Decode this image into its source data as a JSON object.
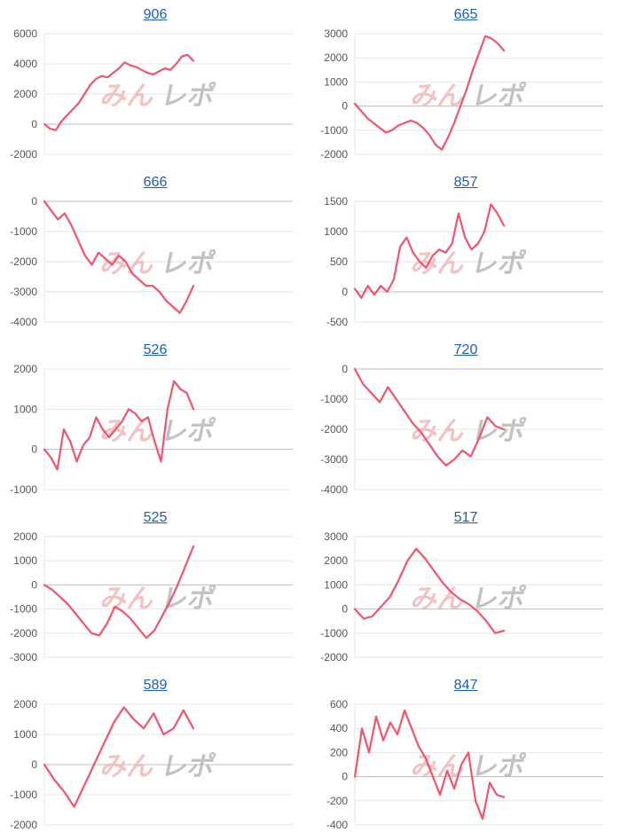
{
  "watermark": "みんレポ",
  "colors": {
    "line": "#f0546e",
    "grid": "#e6e6e6",
    "axis": "#bdbdbd",
    "watermark": "#f0b9b9",
    "watermark2": "#b8b8b8",
    "title": "#1a5fb4"
  },
  "chart_data": [
    {
      "type": "line",
      "title": "906",
      "ylim": [
        -2000,
        6000
      ],
      "yticks": [
        -2000,
        0,
        2000,
        4000,
        6000
      ],
      "series": [
        {
          "values": [
            0,
            -300,
            -400,
            200,
            600,
            1000,
            1400,
            2000,
            2600,
            3000,
            3200,
            3100,
            3400,
            3700,
            4100,
            3900,
            3800,
            3600,
            3400,
            3300,
            3500,
            3700,
            3600,
            4000,
            4500,
            4600,
            4200
          ]
        }
      ]
    },
    {
      "type": "line",
      "title": "665",
      "ylim": [
        -2000,
        3000
      ],
      "yticks": [
        -2000,
        -1000,
        0,
        1000,
        2000,
        3000
      ],
      "series": [
        {
          "values": [
            100,
            -200,
            -500,
            -700,
            -900,
            -1100,
            -1000,
            -800,
            -700,
            -600,
            -700,
            -900,
            -1200,
            -1600,
            -1800,
            -1300,
            -700,
            0,
            700,
            1500,
            2200,
            2900,
            2800,
            2600,
            2300
          ]
        }
      ]
    },
    {
      "type": "line",
      "title": "666",
      "ylim": [
        -4000,
        0
      ],
      "yticks": [
        -4000,
        -3000,
        -2000,
        -1000,
        0
      ],
      "series": [
        {
          "values": [
            0,
            -300,
            -600,
            -400,
            -800,
            -1300,
            -1800,
            -2100,
            -1700,
            -1900,
            -2100,
            -1800,
            -2000,
            -2400,
            -2600,
            -2800,
            -2800,
            -3000,
            -3300,
            -3500,
            -3700,
            -3300,
            -2800
          ]
        }
      ]
    },
    {
      "type": "line",
      "title": "857",
      "ylim": [
        -500,
        1500
      ],
      "yticks": [
        -500,
        0,
        500,
        1000,
        1500
      ],
      "series": [
        {
          "values": [
            50,
            -100,
            100,
            -50,
            100,
            0,
            200,
            750,
            900,
            650,
            500,
            400,
            600,
            700,
            650,
            800,
            1300,
            900,
            700,
            800,
            1000,
            1450,
            1300,
            1100
          ]
        }
      ]
    },
    {
      "type": "line",
      "title": "526",
      "ylim": [
        -1000,
        2000
      ],
      "yticks": [
        -1000,
        0,
        1000,
        2000
      ],
      "series": [
        {
          "values": [
            0,
            -200,
            -500,
            500,
            200,
            -300,
            100,
            300,
            800,
            500,
            300,
            500,
            700,
            1000,
            900,
            700,
            800,
            200,
            -300,
            1000,
            1700,
            1500,
            1400,
            1000
          ]
        }
      ]
    },
    {
      "type": "line",
      "title": "720",
      "ylim": [
        -4000,
        0
      ],
      "yticks": [
        -4000,
        -3000,
        -2000,
        -1000,
        0
      ],
      "series": [
        {
          "values": [
            0,
            -500,
            -800,
            -1100,
            -600,
            -1000,
            -1400,
            -1800,
            -2100,
            -2500,
            -2900,
            -3200,
            -3000,
            -2700,
            -2900,
            -2300,
            -1600,
            -1900,
            -2000
          ]
        }
      ]
    },
    {
      "type": "line",
      "title": "525",
      "ylim": [
        -3000,
        2000
      ],
      "yticks": [
        -3000,
        -2000,
        -1000,
        0,
        1000,
        2000
      ],
      "series": [
        {
          "values": [
            0,
            -200,
            -500,
            -800,
            -1200,
            -1600,
            -2000,
            -2100,
            -1600,
            -900,
            -1100,
            -1400,
            -1800,
            -2200,
            -1900,
            -1300,
            -700,
            0,
            800,
            1600
          ]
        }
      ]
    },
    {
      "type": "line",
      "title": "517",
      "ylim": [
        -2000,
        3000
      ],
      "yticks": [
        -2000,
        -1000,
        0,
        1000,
        2000,
        3000
      ],
      "series": [
        {
          "values": [
            0,
            -400,
            -300,
            100,
            500,
            1200,
            2000,
            2500,
            2100,
            1600,
            1100,
            700,
            400,
            200,
            -100,
            -500,
            -1000,
            -900
          ]
        }
      ]
    },
    {
      "type": "line",
      "title": "589",
      "ylim": [
        -2000,
        2000
      ],
      "yticks": [
        -2000,
        -1000,
        0,
        1000,
        2000
      ],
      "series": [
        {
          "values": [
            0,
            -500,
            -900,
            -1400,
            -700,
            0,
            700,
            1400,
            1900,
            1500,
            1200,
            1700,
            1000,
            1200,
            1800,
            1200
          ]
        }
      ]
    },
    {
      "type": "line",
      "title": "847",
      "ylim": [
        -400,
        600
      ],
      "yticks": [
        -400,
        -200,
        0,
        200,
        400,
        600
      ],
      "series": [
        {
          "values": [
            0,
            400,
            200,
            500,
            300,
            450,
            350,
            550,
            400,
            250,
            150,
            0,
            -150,
            50,
            -100,
            100,
            200,
            -200,
            -350,
            -50,
            -150,
            -170
          ]
        }
      ]
    }
  ]
}
